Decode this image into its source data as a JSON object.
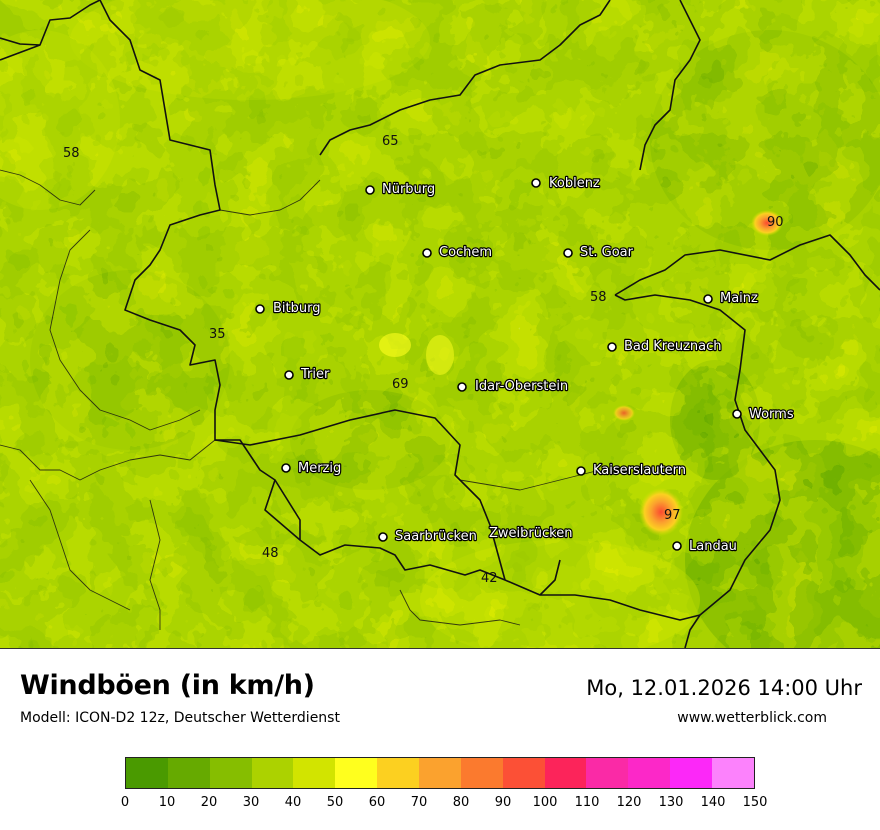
{
  "header": {
    "title": "Windböen (in km/h)",
    "model": "Modell: ICON-D2 12z, Deutscher Wetterdienst",
    "datetime": "Mo, 12.01.2026 14:00 Uhr",
    "website": "www.wetterblick.com"
  },
  "legend": {
    "ticks": [
      "0",
      "10",
      "20",
      "30",
      "40",
      "50",
      "60",
      "70",
      "80",
      "90",
      "100",
      "110",
      "120",
      "130",
      "140",
      "150"
    ],
    "colors": [
      "#4a9a00",
      "#66aa00",
      "#86be00",
      "#acd200",
      "#d2e400",
      "#ffff1e",
      "#fcd020",
      "#fba22e",
      "#fb7a2e",
      "#fc5036",
      "#fc245a",
      "#fa2aa6",
      "#fc28c8",
      "#fc28f8",
      "#fc82fc"
    ]
  },
  "cities": [
    {
      "name": "Nürburg"
    },
    {
      "name": "Koblenz"
    },
    {
      "name": "Cochem"
    },
    {
      "name": "St. Goar"
    },
    {
      "name": "Bitburg"
    },
    {
      "name": "Mainz"
    },
    {
      "name": "Bad Kreuznach"
    },
    {
      "name": "Trier"
    },
    {
      "name": "Idar-Oberstein"
    },
    {
      "name": "Worms"
    },
    {
      "name": "Merzig"
    },
    {
      "name": "Kaiserslautern"
    },
    {
      "name": "Saarbrücken"
    },
    {
      "name": "Zweibrücken"
    },
    {
      "name": "Landau"
    }
  ],
  "values": [
    "58",
    "65",
    "90",
    "58",
    "35",
    "69",
    "97",
    "48",
    "42"
  ]
}
